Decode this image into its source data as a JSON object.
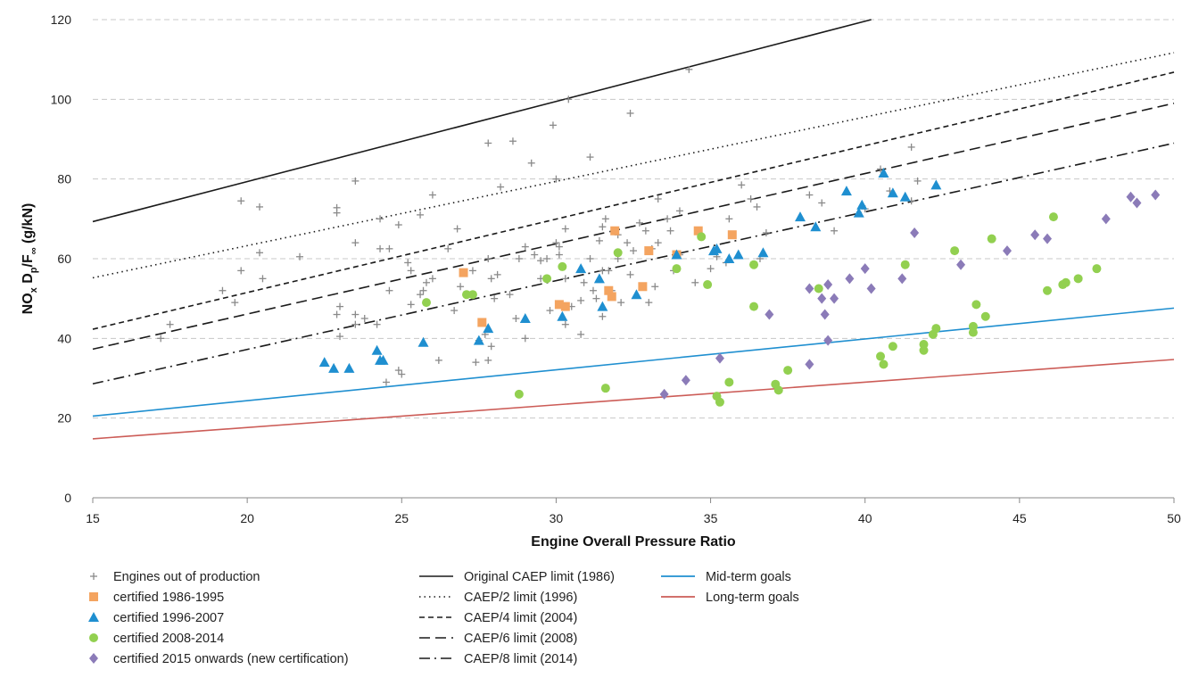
{
  "chart_data": {
    "type": "scatter",
    "xlabel": "Engine Overall Pressure Ratio",
    "ylabel": "NOx Dp/F∞ (g/kN)",
    "ylabel_parts": {
      "a": "NO",
      "b": "x",
      "c": " D",
      "d": "p",
      "e": "/F",
      "f": "∞",
      "g": " (g/kN)"
    },
    "xlim": [
      15,
      50
    ],
    "ylim": [
      0,
      120
    ],
    "xticks": [
      "15",
      "20",
      "25",
      "30",
      "35",
      "40",
      "45",
      "50"
    ],
    "yticks": [
      "0",
      "20",
      "40",
      "60",
      "80",
      "100",
      "120"
    ],
    "grid": "horizontal dashed",
    "legend_position": "bottom",
    "lines": [
      {
        "name": "Original CAEP limit (1986)",
        "style": "solid",
        "color": "#1a1a1a",
        "points": [
          [
            15,
            69.3
          ],
          [
            40.2,
            120
          ]
        ]
      },
      {
        "name": "CAEP/2 limit (1996)",
        "style": "dotted",
        "color": "#1a1a1a",
        "points": [
          [
            15,
            55.2
          ],
          [
            50,
            111.7
          ]
        ]
      },
      {
        "name": "CAEP/4 limit (2004)",
        "style": "short-dash",
        "color": "#1a1a1a",
        "points": [
          [
            15,
            42.3
          ],
          [
            50,
            106.8
          ]
        ]
      },
      {
        "name": "CAEP/6 limit (2008)",
        "style": "long-dash",
        "color": "#1a1a1a",
        "points": [
          [
            15,
            37.3
          ],
          [
            50,
            99
          ]
        ]
      },
      {
        "name": "CAEP/8 limit (2014)",
        "style": "dash-dot",
        "color": "#1a1a1a",
        "points": [
          [
            15,
            28.6
          ],
          [
            50,
            89
          ]
        ]
      },
      {
        "name": "Mid-term goals",
        "style": "solid",
        "color": "#1f8fd0",
        "points": [
          [
            15,
            20.5
          ],
          [
            50,
            47.6
          ]
        ]
      },
      {
        "name": "Long-term goals",
        "style": "solid",
        "color": "#cc5c57",
        "points": [
          [
            15,
            14.8
          ],
          [
            50,
            34.7
          ]
        ]
      }
    ],
    "series": [
      {
        "name": "Engines out of production",
        "marker": "plus",
        "color": "#8a8a8a",
        "points": [
          [
            17.2,
            40
          ],
          [
            17.5,
            43.5
          ],
          [
            19.2,
            52
          ],
          [
            19.6,
            49
          ],
          [
            19.8,
            57
          ],
          [
            19.8,
            74.5
          ],
          [
            20.4,
            61.5
          ],
          [
            20.4,
            73
          ],
          [
            20.5,
            55
          ],
          [
            21.7,
            60.5
          ],
          [
            22.9,
            46
          ],
          [
            23,
            48
          ],
          [
            23,
            40.5
          ],
          [
            22.9,
            72.8
          ],
          [
            22.9,
            71.5
          ],
          [
            23.5,
            64
          ],
          [
            23.5,
            79.5
          ],
          [
            23.5,
            43.5
          ],
          [
            23.5,
            46
          ],
          [
            23.8,
            45
          ],
          [
            24.2,
            43.5
          ],
          [
            24.3,
            62.5
          ],
          [
            24.3,
            70
          ],
          [
            24.6,
            52
          ],
          [
            24.6,
            62.5
          ],
          [
            24.9,
            68.5
          ],
          [
            24.5,
            29
          ],
          [
            24.9,
            32
          ],
          [
            25,
            31
          ],
          [
            25.3,
            57
          ],
          [
            25.2,
            59
          ],
          [
            25.3,
            48.5
          ],
          [
            25.6,
            51
          ],
          [
            25.6,
            71
          ],
          [
            25.7,
            52
          ],
          [
            25.8,
            54
          ],
          [
            26,
            76
          ],
          [
            26,
            55
          ],
          [
            26.2,
            34.5
          ],
          [
            26.5,
            62.5
          ],
          [
            26.7,
            47
          ],
          [
            26.8,
            67.5
          ],
          [
            26.9,
            53
          ],
          [
            27.3,
            57
          ],
          [
            27.4,
            34
          ],
          [
            27.5,
            39.5
          ],
          [
            27.7,
            41
          ],
          [
            27.8,
            34.5
          ],
          [
            27.9,
            38
          ],
          [
            27.8,
            89
          ],
          [
            27.8,
            60
          ],
          [
            27.9,
            55
          ],
          [
            28,
            50
          ],
          [
            28.1,
            56
          ],
          [
            28.2,
            78
          ],
          [
            28.5,
            51
          ],
          [
            28.6,
            89.5
          ],
          [
            28.7,
            45
          ],
          [
            28.8,
            60
          ],
          [
            29,
            63
          ],
          [
            29,
            40
          ],
          [
            29.2,
            84
          ],
          [
            29.3,
            61
          ],
          [
            29.5,
            59.5
          ],
          [
            29.5,
            55
          ],
          [
            29.7,
            60
          ],
          [
            29.8,
            47
          ],
          [
            29.9,
            93.5
          ],
          [
            30,
            80
          ],
          [
            30,
            64
          ],
          [
            30.1,
            61
          ],
          [
            30.1,
            63
          ],
          [
            30.2,
            58
          ],
          [
            30.3,
            67.5
          ],
          [
            30.3,
            55
          ],
          [
            30.4,
            100
          ],
          [
            30.3,
            43.5
          ],
          [
            30.5,
            48
          ],
          [
            30.8,
            41
          ],
          [
            30.8,
            49.5
          ],
          [
            30.9,
            54
          ],
          [
            31.1,
            85.5
          ],
          [
            31.1,
            60
          ],
          [
            31.2,
            52
          ],
          [
            31.3,
            50
          ],
          [
            31.4,
            64.5
          ],
          [
            31.5,
            45.5
          ],
          [
            31.5,
            57
          ],
          [
            31.5,
            68
          ],
          [
            31.6,
            70
          ],
          [
            31.7,
            57
          ],
          [
            31.8,
            52
          ],
          [
            32,
            66
          ],
          [
            32,
            60
          ],
          [
            32.1,
            49
          ],
          [
            32.4,
            96.5
          ],
          [
            32.3,
            64
          ],
          [
            32.4,
            56
          ],
          [
            32.5,
            62
          ],
          [
            32.7,
            69
          ],
          [
            32.9,
            67
          ],
          [
            33,
            49
          ],
          [
            33.1,
            62.5
          ],
          [
            33.2,
            53
          ],
          [
            33.3,
            75
          ],
          [
            33.3,
            64
          ],
          [
            33.6,
            70
          ],
          [
            33.7,
            67
          ],
          [
            33.8,
            57
          ],
          [
            34,
            61
          ],
          [
            34,
            72
          ],
          [
            34.5,
            54
          ],
          [
            35,
            57.5
          ],
          [
            35.2,
            60.5
          ],
          [
            35.5,
            59
          ],
          [
            35.6,
            70
          ],
          [
            36,
            78.5
          ],
          [
            36.3,
            75
          ],
          [
            36.5,
            73
          ],
          [
            36.8,
            66.5
          ],
          [
            36.6,
            60
          ],
          [
            34.3,
            107.5
          ],
          [
            38.2,
            76
          ],
          [
            38.6,
            74
          ],
          [
            39,
            67
          ],
          [
            40,
            72.5
          ],
          [
            40.5,
            82.5
          ],
          [
            40.8,
            77
          ],
          [
            41.5,
            88
          ],
          [
            41.5,
            74.5
          ],
          [
            41.7,
            79.5
          ]
        ]
      },
      {
        "name": "certified 1986-1995",
        "marker": "square",
        "color": "#f4a460",
        "points": [
          [
            27,
            56.5
          ],
          [
            27.6,
            44
          ],
          [
            30.1,
            48.5
          ],
          [
            30.3,
            48
          ],
          [
            31.7,
            52
          ],
          [
            31.8,
            50.5
          ],
          [
            31.9,
            67
          ],
          [
            32.8,
            53
          ],
          [
            33,
            62
          ],
          [
            33.9,
            61
          ],
          [
            34.6,
            67
          ],
          [
            35.7,
            66
          ]
        ]
      },
      {
        "name": "certified 1996-2007",
        "marker": "triangle",
        "color": "#1f8fd0",
        "points": [
          [
            22.5,
            34
          ],
          [
            22.8,
            32.5
          ],
          [
            23.3,
            32.5
          ],
          [
            24.2,
            37
          ],
          [
            24.3,
            34.5
          ],
          [
            24.4,
            34.5
          ],
          [
            25.7,
            39
          ],
          [
            27.5,
            39.5
          ],
          [
            27.8,
            42.5
          ],
          [
            29,
            45
          ],
          [
            30.2,
            45.5
          ],
          [
            30.8,
            57.5
          ],
          [
            31.4,
            55
          ],
          [
            31.5,
            48
          ],
          [
            32.6,
            51
          ],
          [
            33.9,
            61
          ],
          [
            35.1,
            62
          ],
          [
            35.2,
            62.5
          ],
          [
            35.6,
            60
          ],
          [
            35.9,
            61
          ],
          [
            36.7,
            61.5
          ],
          [
            37.9,
            70.5
          ],
          [
            38.4,
            68
          ],
          [
            39.4,
            77
          ],
          [
            39.8,
            71.5
          ],
          [
            39.9,
            73.5
          ],
          [
            40.6,
            81.5
          ],
          [
            40.9,
            76.5
          ],
          [
            41.3,
            75.5
          ],
          [
            42.3,
            78.5
          ]
        ]
      },
      {
        "name": "certified 2008-2014",
        "marker": "circle",
        "color": "#92d050",
        "points": [
          [
            25.8,
            49
          ],
          [
            27.1,
            51
          ],
          [
            27.3,
            51
          ],
          [
            28.8,
            26
          ],
          [
            29.7,
            55
          ],
          [
            30.2,
            58
          ],
          [
            31.6,
            27.5
          ],
          [
            32,
            61.5
          ],
          [
            33.9,
            57.5
          ],
          [
            34.7,
            65.5
          ],
          [
            34.9,
            53.5
          ],
          [
            35.2,
            25.5
          ],
          [
            35.3,
            24
          ],
          [
            35.6,
            29
          ],
          [
            36.4,
            58.5
          ],
          [
            36.4,
            48
          ],
          [
            37.1,
            28.5
          ],
          [
            37.2,
            27
          ],
          [
            37.5,
            32
          ],
          [
            38.5,
            52.5
          ],
          [
            40.5,
            35.5
          ],
          [
            40.6,
            33.5
          ],
          [
            40.9,
            38
          ],
          [
            41.3,
            58.5
          ],
          [
            41.9,
            38.5
          ],
          [
            41.9,
            37
          ],
          [
            42.2,
            41
          ],
          [
            42.3,
            42.5
          ],
          [
            42.9,
            62
          ],
          [
            43.5,
            43
          ],
          [
            43.5,
            41.5
          ],
          [
            43.6,
            48.5
          ],
          [
            43.9,
            45.5
          ],
          [
            44.1,
            65
          ],
          [
            45.9,
            52
          ],
          [
            46.1,
            70.5
          ],
          [
            46.4,
            53.5
          ],
          [
            46.5,
            54
          ],
          [
            46.9,
            55
          ],
          [
            47.5,
            57.5
          ]
        ]
      },
      {
        "name": "certified 2015 onwards (new certification)",
        "marker": "diamond",
        "color": "#8b7bb8",
        "points": [
          [
            33.5,
            26
          ],
          [
            34.2,
            29.5
          ],
          [
            35.3,
            35
          ],
          [
            36.9,
            46
          ],
          [
            38.2,
            52.5
          ],
          [
            38.2,
            33.5
          ],
          [
            38.6,
            50
          ],
          [
            38.7,
            46
          ],
          [
            38.8,
            39.5
          ],
          [
            38.8,
            53.5
          ],
          [
            39,
            50
          ],
          [
            39.5,
            55
          ],
          [
            40,
            57.5
          ],
          [
            40.2,
            52.5
          ],
          [
            41.2,
            55
          ],
          [
            41.6,
            66.5
          ],
          [
            43.1,
            58.5
          ],
          [
            44.6,
            62
          ],
          [
            45.5,
            66
          ],
          [
            45.9,
            65
          ],
          [
            47.8,
            70
          ],
          [
            48.6,
            75.5
          ],
          [
            48.8,
            74
          ],
          [
            49.4,
            76
          ]
        ]
      }
    ]
  }
}
